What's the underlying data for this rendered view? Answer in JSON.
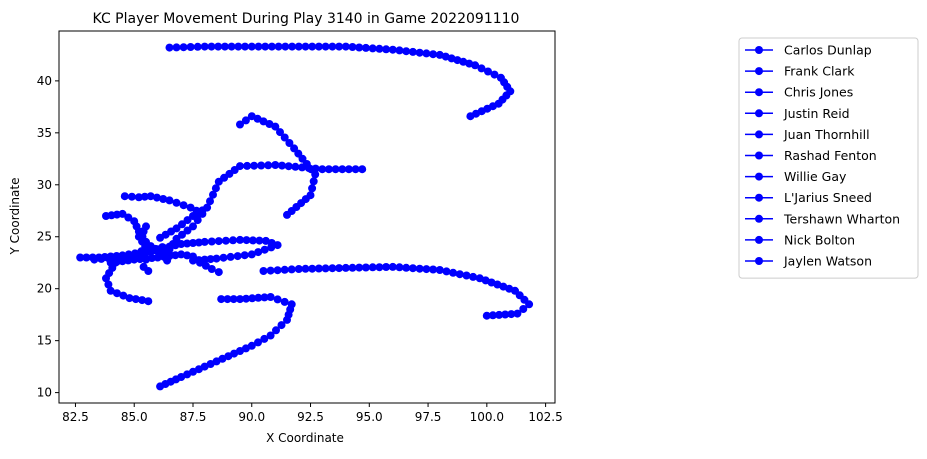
{
  "chart_data": {
    "type": "line",
    "title": "KC Player Movement During Play 3140 in Game 2022091110",
    "xlabel": "X Coordinate",
    "ylabel": "Y Coordinate",
    "xlim": [
      81.8,
      102.9
    ],
    "ylim": [
      9.0,
      44.8
    ],
    "xticks": [
      "82.5",
      "85.0",
      "87.5",
      "90.0",
      "92.5",
      "95.0",
      "97.5",
      "100.0",
      "102.5"
    ],
    "xtick_values": [
      82.5,
      85.0,
      87.5,
      90.0,
      92.5,
      95.0,
      97.5,
      100.0,
      102.5
    ],
    "yticks": [
      "10",
      "15",
      "20",
      "25",
      "30",
      "35",
      "40"
    ],
    "ytick_values": [
      10,
      15,
      20,
      25,
      30,
      35,
      40
    ],
    "grid": false,
    "legend_position": "upper-right-outside",
    "series_color": "#0000ff",
    "marker": "circle",
    "series": [
      {
        "name": "Carlos Dunlap",
        "points": [
          [
            86.5,
            43.2
          ],
          [
            88,
            43.3
          ],
          [
            90,
            43.3
          ],
          [
            92,
            43.3
          ],
          [
            94,
            43.3
          ],
          [
            96,
            43.0
          ],
          [
            98,
            42.5
          ],
          [
            99.5,
            41.5
          ],
          [
            100.6,
            40.3
          ],
          [
            101.0,
            39.0
          ],
          [
            100.5,
            37.8
          ],
          [
            99.3,
            36.6
          ]
        ]
      },
      {
        "name": "Frank Clark",
        "points": [
          [
            89.5,
            35.8
          ],
          [
            90.0,
            36.6
          ],
          [
            91.0,
            35.6
          ],
          [
            91.8,
            33.5
          ],
          [
            92.7,
            31.0
          ],
          [
            92.5,
            29.0
          ],
          [
            91.5,
            27.1
          ]
        ]
      },
      {
        "name": "Chris Jones",
        "points": [
          [
            94.7,
            31.5
          ],
          [
            93,
            31.5
          ],
          [
            91,
            31.9
          ],
          [
            89.5,
            31.8
          ],
          [
            88.6,
            30.3
          ],
          [
            88.1,
            27.8
          ],
          [
            87.5,
            27.0
          ],
          [
            86.8,
            25.8
          ],
          [
            86.1,
            24.9
          ]
        ]
      },
      {
        "name": "Justin Reid",
        "points": [
          [
            86.1,
            10.6
          ],
          [
            87.0,
            11.5
          ],
          [
            88.0,
            12.5
          ],
          [
            89.0,
            13.5
          ],
          [
            90.0,
            14.5
          ],
          [
            90.8,
            15.5
          ],
          [
            91.5,
            17.0
          ],
          [
            91.7,
            18.5
          ],
          [
            90.8,
            19.2
          ],
          [
            89.5,
            19.0
          ],
          [
            88.7,
            19.0
          ]
        ]
      },
      {
        "name": "Juan Thornhill",
        "points": [
          [
            90.5,
            21.7
          ],
          [
            92,
            21.9
          ],
          [
            94,
            22.0
          ],
          [
            96,
            22.1
          ],
          [
            98,
            21.8
          ],
          [
            99.7,
            21.0
          ],
          [
            101.2,
            19.8
          ],
          [
            101.8,
            18.5
          ],
          [
            101.3,
            17.6
          ],
          [
            100.0,
            17.4
          ]
        ]
      },
      {
        "name": "Rashad Fenton",
        "points": [
          [
            85.6,
            18.8
          ],
          [
            84.8,
            19.1
          ],
          [
            84.0,
            19.8
          ],
          [
            83.8,
            21.0
          ],
          [
            84.2,
            22.5
          ],
          [
            85.0,
            23.2
          ],
          [
            86.0,
            23.8
          ],
          [
            87.0,
            24.3
          ],
          [
            88.0,
            24.5
          ],
          [
            89.5,
            24.7
          ],
          [
            90.6,
            24.6
          ],
          [
            91.1,
            24.2
          ],
          [
            90.0,
            23.3
          ],
          [
            88.5,
            22.9
          ],
          [
            87.5,
            22.7
          ]
        ]
      },
      {
        "name": "Willie Gay",
        "points": [
          [
            83.8,
            27.0
          ],
          [
            84.5,
            27.2
          ],
          [
            85.0,
            26.5
          ],
          [
            85.2,
            25.5
          ],
          [
            85.5,
            24.5
          ],
          [
            85.9,
            23.7
          ],
          [
            86.3,
            23.1
          ]
        ]
      },
      {
        "name": "L'Jarius Sneed",
        "points": [
          [
            82.7,
            23.0
          ],
          [
            83.5,
            23.0
          ],
          [
            84.5,
            23.2
          ],
          [
            85.3,
            23.5
          ],
          [
            86.2,
            24.0
          ],
          [
            86.5,
            23.3
          ],
          [
            86.4,
            22.7
          ]
        ]
      },
      {
        "name": "Tershawn Wharton",
        "points": [
          [
            84.6,
            28.9
          ],
          [
            85.2,
            28.8
          ],
          [
            85.7,
            28.9
          ],
          [
            86.5,
            28.5
          ],
          [
            87.4,
            27.8
          ],
          [
            87.9,
            27.2
          ],
          [
            87.5,
            26.0
          ],
          [
            86.8,
            24.8
          ],
          [
            86.5,
            23.8
          ]
        ]
      },
      {
        "name": "Nick Bolton",
        "points": [
          [
            84.0,
            22.5
          ],
          [
            85.0,
            22.8
          ],
          [
            86.0,
            23.0
          ],
          [
            87.0,
            23.3
          ],
          [
            87.5,
            23.1
          ],
          [
            87.8,
            22.5
          ],
          [
            88.3,
            21.9
          ],
          [
            88.6,
            21.6
          ]
        ]
      },
      {
        "name": "Jaylen Watson",
        "points": [
          [
            83.3,
            22.8
          ],
          [
            84.2,
            23.0
          ],
          [
            85.1,
            23.2
          ],
          [
            85.5,
            24.0
          ],
          [
            85.3,
            25.0
          ],
          [
            85.5,
            26.0
          ],
          [
            85.2,
            25.0
          ],
          [
            85.6,
            23.6
          ],
          [
            85.5,
            22.8
          ],
          [
            85.4,
            22.1
          ],
          [
            85.6,
            21.7
          ]
        ]
      }
    ]
  }
}
